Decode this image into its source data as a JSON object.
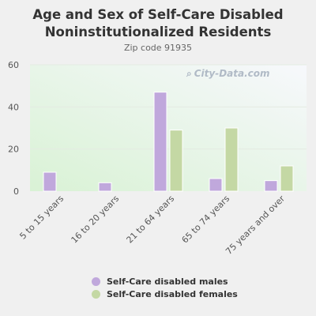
{
  "title_line1": "Age and Sex of Self-Care Disabled",
  "title_line2": "Noninstitutionalized Residents",
  "subtitle": "Zip code 91935",
  "watermark": "City-Data.com",
  "colors": {
    "males": "#c0a8dc",
    "females": "#c4d8a4"
  },
  "chart_data": {
    "type": "bar",
    "title": "Age and Sex of Self-Care Disabled Noninstitutionalized Residents",
    "subtitle": "Zip code 91935",
    "categories": [
      "5 to 15 years",
      "16 to 20 years",
      "21 to 64 years",
      "65 to 74 years",
      "75 years and over"
    ],
    "series": [
      {
        "name": "Self-Care disabled males",
        "values": [
          9,
          4,
          47,
          6,
          5
        ]
      },
      {
        "name": "Self-Care disabled females",
        "values": [
          0,
          0,
          29,
          30,
          12
        ]
      }
    ],
    "ylim": [
      0,
      60
    ],
    "yticks": [
      0,
      20,
      40,
      60
    ],
    "grid": true,
    "legend_position": "bottom"
  }
}
